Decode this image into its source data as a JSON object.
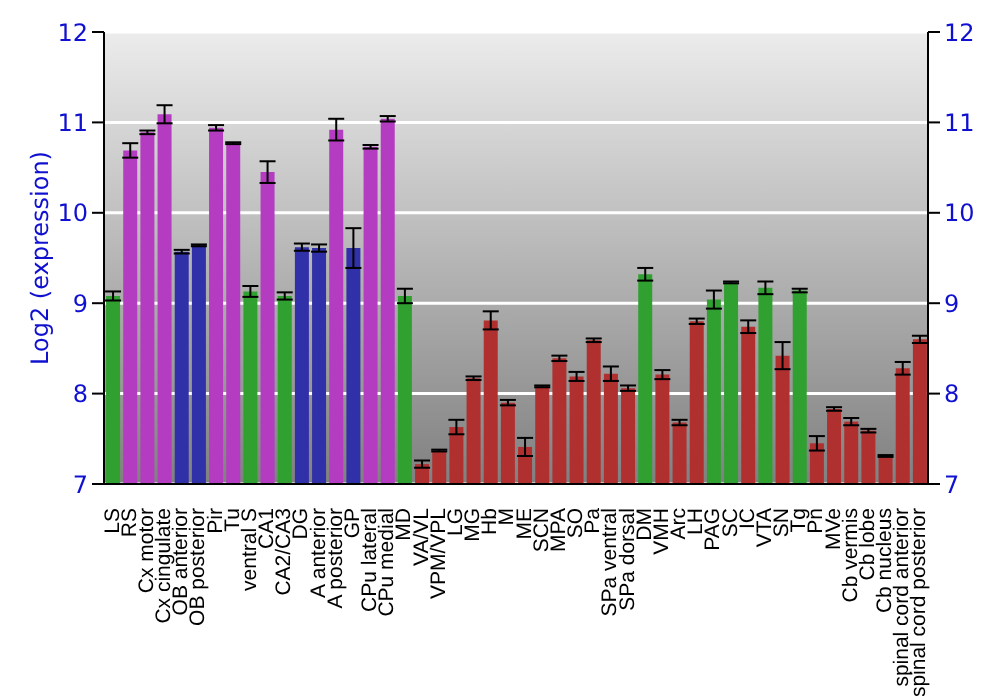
{
  "chart_data": {
    "type": "bar",
    "ylabel": "Log2 (expression)",
    "categories": [
      "LS",
      "RS",
      "Cx motor",
      "Cx cingulate",
      "OB anterior",
      "OB posterior",
      "Pir",
      "Tu",
      "ventral S",
      "CA1",
      "CA2/CA3",
      "DG",
      "A anterior",
      "A posterior",
      "GP",
      "CPu lateral",
      "CPu medial",
      "MD",
      "VA/VL",
      "VPM/VPL",
      "LG",
      "MG",
      "Hb",
      "M",
      "ME",
      "SCN",
      "MPA",
      "SO",
      "Pa",
      "SPa ventral",
      "SPa dorsal",
      "DM",
      "VMH",
      "Arc",
      "LH",
      "PAG",
      "SC",
      "IC",
      "VTA",
      "SN",
      "Tg",
      "Pn",
      "MVe",
      "Cb vermis",
      "Cb lobe",
      "Cb nucleus",
      "spinal cord anterior",
      "spinal cord posterior"
    ],
    "values": [
      9.08,
      10.69,
      10.89,
      11.09,
      9.57,
      9.64,
      10.94,
      10.77,
      9.13,
      10.45,
      9.08,
      9.62,
      9.61,
      10.92,
      9.61,
      10.73,
      11.04,
      9.08,
      7.22,
      7.37,
      7.63,
      8.17,
      8.81,
      7.9,
      7.41,
      8.08,
      8.39,
      8.19,
      8.59,
      8.22,
      8.06,
      9.32,
      8.21,
      7.68,
      8.8,
      9.04,
      9.23,
      8.74,
      9.17,
      8.42,
      9.14,
      7.45,
      7.83,
      7.69,
      7.59,
      7.31,
      8.28,
      8.6
    ],
    "errors": [
      0.05,
      0.08,
      0.02,
      0.1,
      0.02,
      0.01,
      0.03,
      0.01,
      0.06,
      0.12,
      0.04,
      0.04,
      0.04,
      0.12,
      0.22,
      0.02,
      0.03,
      0.08,
      0.04,
      0.01,
      0.08,
      0.02,
      0.1,
      0.03,
      0.1,
      0.01,
      0.03,
      0.05,
      0.02,
      0.08,
      0.03,
      0.07,
      0.05,
      0.03,
      0.03,
      0.1,
      0.01,
      0.07,
      0.07,
      0.15,
      0.02,
      0.08,
      0.02,
      0.04,
      0.02,
      0.01,
      0.07,
      0.04
    ],
    "colors": [
      "#30a030",
      "#b43cc0",
      "#b43cc0",
      "#b43cc0",
      "#3030a8",
      "#3030a8",
      "#b43cc0",
      "#b43cc0",
      "#30a030",
      "#b43cc0",
      "#30a030",
      "#3030a8",
      "#3030a8",
      "#b43cc0",
      "#3030a8",
      "#b43cc0",
      "#b43cc0",
      "#30a030",
      "#b03030",
      "#b03030",
      "#b03030",
      "#b03030",
      "#b03030",
      "#b03030",
      "#b03030",
      "#b03030",
      "#b03030",
      "#b03030",
      "#b03030",
      "#b03030",
      "#b03030",
      "#30a030",
      "#b03030",
      "#b03030",
      "#b03030",
      "#30a030",
      "#30a030",
      "#b03030",
      "#30a030",
      "#b03030",
      "#30a030",
      "#b03030",
      "#b03030",
      "#b03030",
      "#b03030",
      "#b03030",
      "#b03030",
      "#b03030"
    ],
    "ylim": [
      7,
      12
    ],
    "yticks": [
      7,
      8,
      9,
      10,
      11,
      12
    ],
    "y2lim": [
      7,
      12
    ],
    "y2ticks": [
      7,
      8,
      9,
      10,
      11,
      12
    ],
    "grid": "y",
    "legend": false
  }
}
